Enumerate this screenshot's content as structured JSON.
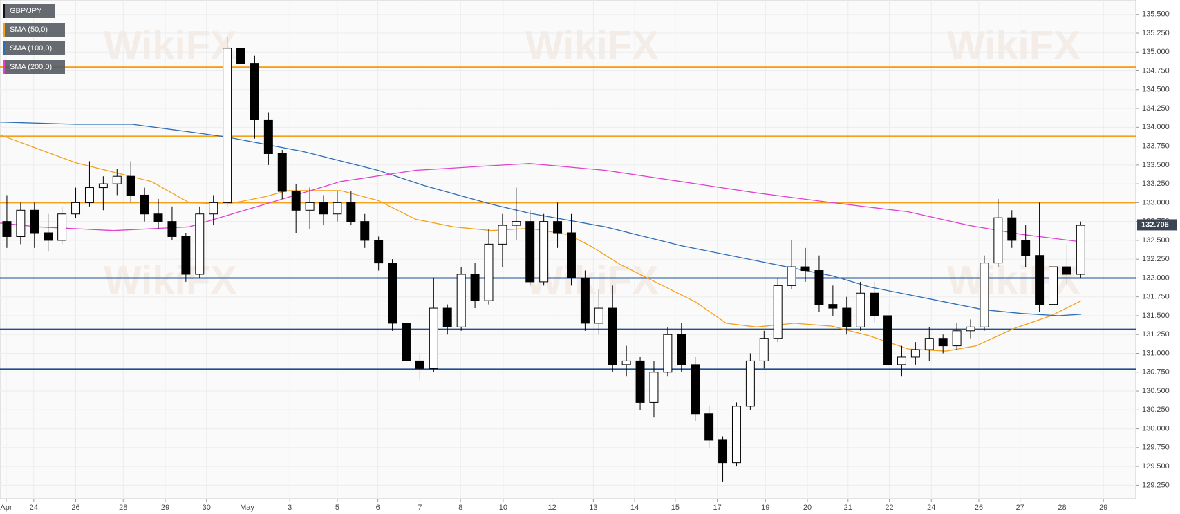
{
  "chart_data": {
    "type": "candlestick",
    "watermark": "WikiFX",
    "last_price": 132.706,
    "ylim": [
      129.07,
      135.69
    ],
    "xlim": [
      0,
      165
    ],
    "grid": true,
    "yticks": [
      {
        "value": 129.25,
        "label": "129.250"
      },
      {
        "value": 129.5,
        "label": "129.500"
      },
      {
        "value": 129.75,
        "label": "129.750"
      },
      {
        "value": 130,
        "label": "130.000"
      },
      {
        "value": 130.25,
        "label": "130.250"
      },
      {
        "value": 130.5,
        "label": "130.500"
      },
      {
        "value": 130.75,
        "label": "130.750"
      },
      {
        "value": 131,
        "label": "131.000"
      },
      {
        "value": 131.25,
        "label": "131.250"
      },
      {
        "value": 131.5,
        "label": "131.500"
      },
      {
        "value": 131.75,
        "label": "131.750"
      },
      {
        "value": 132,
        "label": "132.000"
      },
      {
        "value": 132.25,
        "label": "132.250"
      },
      {
        "value": 132.5,
        "label": "132.500"
      },
      {
        "value": 132.75,
        "label": "132.750"
      },
      {
        "value": 133,
        "label": "133.000"
      },
      {
        "value": 133.25,
        "label": "133.250"
      },
      {
        "value": 133.5,
        "label": "133.500"
      },
      {
        "value": 133.75,
        "label": "133.750"
      },
      {
        "value": 134,
        "label": "134.000"
      },
      {
        "value": 134.25,
        "label": "134.250"
      },
      {
        "value": 134.5,
        "label": "134.500"
      },
      {
        "value": 134.75,
        "label": "134.750"
      },
      {
        "value": 135,
        "label": "135.000"
      },
      {
        "value": 135.25,
        "label": "135.250"
      },
      {
        "value": 135.5,
        "label": "135.500"
      }
    ],
    "xticks": [
      {
        "value": 0.9,
        "label": "Apr"
      },
      {
        "value": 4.9,
        "label": "24"
      },
      {
        "value": 11,
        "label": "26"
      },
      {
        "value": 17.9,
        "label": "28"
      },
      {
        "value": 24,
        "label": "29"
      },
      {
        "value": 30,
        "label": "30"
      },
      {
        "value": 35.9,
        "label": "May"
      },
      {
        "value": 42.1,
        "label": "3"
      },
      {
        "value": 49,
        "label": "5"
      },
      {
        "value": 54.9,
        "label": "6"
      },
      {
        "value": 61,
        "label": "7"
      },
      {
        "value": 66.9,
        "label": "8"
      },
      {
        "value": 73.1,
        "label": "10"
      },
      {
        "value": 80.2,
        "label": "12"
      },
      {
        "value": 86.2,
        "label": "13"
      },
      {
        "value": 92.2,
        "label": "14"
      },
      {
        "value": 98.1,
        "label": "15"
      },
      {
        "value": 104.2,
        "label": "17"
      },
      {
        "value": 111.2,
        "label": "19"
      },
      {
        "value": 117.3,
        "label": "20"
      },
      {
        "value": 123.2,
        "label": "21"
      },
      {
        "value": 129.2,
        "label": "22"
      },
      {
        "value": 135.3,
        "label": "24"
      },
      {
        "value": 142.2,
        "label": "26"
      },
      {
        "value": 148.2,
        "label": "27"
      },
      {
        "value": 154.3,
        "label": "28"
      },
      {
        "value": 160.3,
        "label": "29"
      }
    ],
    "levels": [
      {
        "value": 134.8,
        "color": "#f5a01a"
      },
      {
        "value": 133.88,
        "color": "#f5a01a"
      },
      {
        "value": 133.0,
        "color": "#f5a01a"
      },
      {
        "value": 132.0,
        "color": "#1d4f91"
      },
      {
        "value": 131.32,
        "color": "#1d4f91"
      },
      {
        "value": 130.79,
        "color": "#1d4f91"
      }
    ],
    "series": [
      {
        "name": "GBP/JPY",
        "color": "#000000",
        "x": [
          1,
          3,
          5,
          7,
          9,
          11,
          13,
          15,
          17,
          19,
          21,
          23,
          25,
          27,
          29,
          31,
          33,
          35,
          37,
          39,
          41,
          43,
          45,
          47,
          49,
          51,
          53,
          55,
          57,
          59,
          61,
          63,
          65,
          67,
          69,
          71,
          73,
          75,
          77,
          79,
          81,
          83,
          85,
          87,
          89,
          91,
          93,
          95,
          97,
          99,
          101,
          103,
          105,
          107,
          109,
          111,
          113,
          115,
          117,
          119,
          121,
          123,
          125,
          127,
          129,
          131,
          133,
          135,
          137,
          139,
          141,
          143,
          145,
          147,
          149,
          151,
          153,
          155,
          157
        ],
        "open": [
          132.75,
          132.55,
          132.9,
          132.6,
          132.5,
          132.85,
          133.0,
          133.2,
          133.25,
          133.35,
          133.1,
          132.85,
          132.75,
          132.55,
          132.05,
          132.85,
          133.0,
          135.05,
          134.85,
          134.1,
          133.65,
          133.15,
          132.9,
          133.0,
          132.85,
          133.0,
          132.75,
          132.5,
          132.2,
          131.4,
          130.9,
          130.8,
          131.6,
          131.35,
          132.05,
          131.7,
          132.45,
          132.7,
          132.75,
          131.95,
          132.75,
          132.6,
          132.0,
          131.4,
          131.6,
          130.85,
          130.9,
          130.35,
          130.75,
          131.25,
          130.85,
          130.2,
          129.85,
          129.55,
          130.3,
          130.9,
          131.2,
          131.9,
          132.15,
          132.1,
          131.65,
          131.6,
          131.35,
          131.8,
          131.5,
          130.85,
          130.95,
          131.05,
          131.2,
          131.1,
          131.3,
          131.35,
          132.2,
          132.8,
          132.5,
          132.3,
          131.65,
          132.15,
          132.05
        ],
        "high": [
          133.1,
          133.0,
          133.0,
          132.85,
          132.95,
          133.2,
          133.55,
          133.35,
          133.45,
          133.55,
          133.2,
          133.05,
          132.95,
          132.6,
          132.95,
          133.1,
          135.2,
          135.45,
          134.95,
          134.2,
          133.7,
          133.25,
          133.2,
          133.1,
          133.15,
          133.15,
          132.85,
          132.55,
          132.25,
          131.45,
          131.0,
          132.0,
          131.65,
          132.15,
          132.2,
          132.65,
          132.85,
          133.2,
          132.9,
          132.85,
          133.0,
          132.85,
          132.1,
          131.85,
          131.9,
          131.1,
          130.95,
          130.9,
          131.35,
          131.4,
          130.95,
          130.3,
          129.9,
          130.35,
          131.0,
          131.3,
          132.0,
          132.5,
          132.4,
          132.3,
          131.9,
          131.75,
          131.95,
          131.95,
          131.65,
          131.1,
          131.15,
          131.35,
          131.25,
          131.4,
          131.45,
          132.3,
          133.05,
          132.9,
          132.7,
          133.0,
          132.25,
          132.45,
          132.75
        ],
        "low": [
          132.4,
          132.45,
          132.4,
          132.35,
          132.45,
          132.8,
          132.95,
          132.9,
          133.1,
          133.0,
          132.75,
          132.65,
          132.5,
          131.95,
          132.0,
          132.7,
          132.95,
          134.6,
          133.85,
          133.5,
          133.05,
          132.6,
          132.65,
          132.7,
          132.75,
          132.7,
          132.4,
          132.1,
          131.3,
          130.8,
          130.65,
          130.75,
          131.25,
          131.3,
          131.6,
          131.65,
          132.15,
          132.5,
          131.9,
          131.9,
          132.4,
          131.9,
          131.3,
          131.25,
          130.75,
          130.7,
          130.25,
          130.15,
          130.7,
          130.75,
          130.1,
          129.75,
          129.3,
          129.5,
          130.25,
          130.8,
          131.15,
          131.85,
          131.95,
          131.55,
          131.5,
          131.25,
          131.3,
          131.4,
          130.8,
          130.7,
          130.85,
          130.9,
          131.0,
          131.05,
          131.2,
          131.3,
          132.15,
          132.4,
          132.15,
          131.55,
          131.6,
          131.9,
          132.0
        ],
        "close": [
          132.55,
          132.9,
          132.6,
          132.5,
          132.85,
          133.0,
          133.2,
          133.25,
          133.35,
          133.1,
          132.85,
          132.75,
          132.55,
          132.05,
          132.85,
          133.0,
          135.05,
          134.85,
          134.1,
          133.65,
          133.15,
          132.9,
          133.0,
          132.85,
          133.0,
          132.75,
          132.5,
          132.2,
          131.4,
          130.9,
          130.8,
          131.6,
          131.35,
          132.05,
          131.7,
          132.45,
          132.7,
          132.75,
          131.95,
          132.75,
          132.6,
          132.0,
          131.4,
          131.6,
          130.85,
          130.9,
          130.35,
          130.75,
          131.25,
          130.85,
          130.2,
          129.85,
          129.55,
          130.3,
          130.9,
          131.2,
          131.9,
          132.15,
          132.1,
          131.65,
          131.6,
          131.35,
          131.8,
          131.5,
          130.85,
          130.95,
          131.05,
          131.2,
          131.1,
          131.3,
          131.35,
          132.2,
          132.8,
          132.5,
          132.3,
          131.65,
          132.15,
          132.05,
          132.7
        ]
      },
      {
        "name": "SMA (50,0)",
        "color": "#f5a01a",
        "x": [
          0,
          11,
          22,
          27.5,
          33,
          38.5,
          41.8,
          49.5,
          54.9,
          60.4,
          65.9,
          71.4,
          76.9,
          82.4,
          85.7,
          90.1,
          95.6,
          101.1,
          105.5,
          109.9,
          115.4,
          120.9,
          126.4,
          131.9,
          137.4,
          141.8,
          147.3,
          152.7,
          157.1
        ],
        "values": [
          133.9,
          133.53,
          133.28,
          133.0,
          132.98,
          133.08,
          133.16,
          133.16,
          133.03,
          132.78,
          132.68,
          132.63,
          132.66,
          132.58,
          132.43,
          132.18,
          131.93,
          131.68,
          131.4,
          131.35,
          131.4,
          131.36,
          131.23,
          131.06,
          131.03,
          131.1,
          131.33,
          131.5,
          131.7
        ]
      },
      {
        "name": "SMA (100,0)",
        "color": "#2f6db5",
        "x": [
          0,
          11,
          19.2,
          27.5,
          33,
          44,
          54.9,
          61.5,
          71.4,
          76.9,
          87.9,
          98.9,
          109.9,
          115.4,
          120.9,
          126.4,
          131.9,
          137.4,
          142.9,
          148.4,
          153.8,
          157.1
        ],
        "values": [
          134.07,
          134.04,
          134.04,
          133.94,
          133.87,
          133.68,
          133.43,
          133.23,
          132.98,
          132.86,
          132.68,
          132.43,
          132.23,
          132.13,
          132.03,
          131.88,
          131.78,
          131.68,
          131.58,
          131.53,
          131.5,
          131.52
        ]
      },
      {
        "name": "SMA (200,0)",
        "color": "#e040d0",
        "x": [
          0,
          5.5,
          16.5,
          27.5,
          33,
          38.5,
          44,
          49.5,
          60.4,
          71.4,
          76.9,
          87.9,
          98.9,
          109.9,
          120.9,
          131.9,
          140.7,
          148.4,
          157.1
        ],
        "values": [
          132.73,
          132.68,
          132.63,
          132.68,
          132.83,
          132.98,
          133.13,
          133.28,
          133.43,
          133.49,
          133.52,
          133.43,
          133.28,
          133.13,
          133.0,
          132.88,
          132.7,
          132.58,
          132.48
        ]
      }
    ]
  }
}
